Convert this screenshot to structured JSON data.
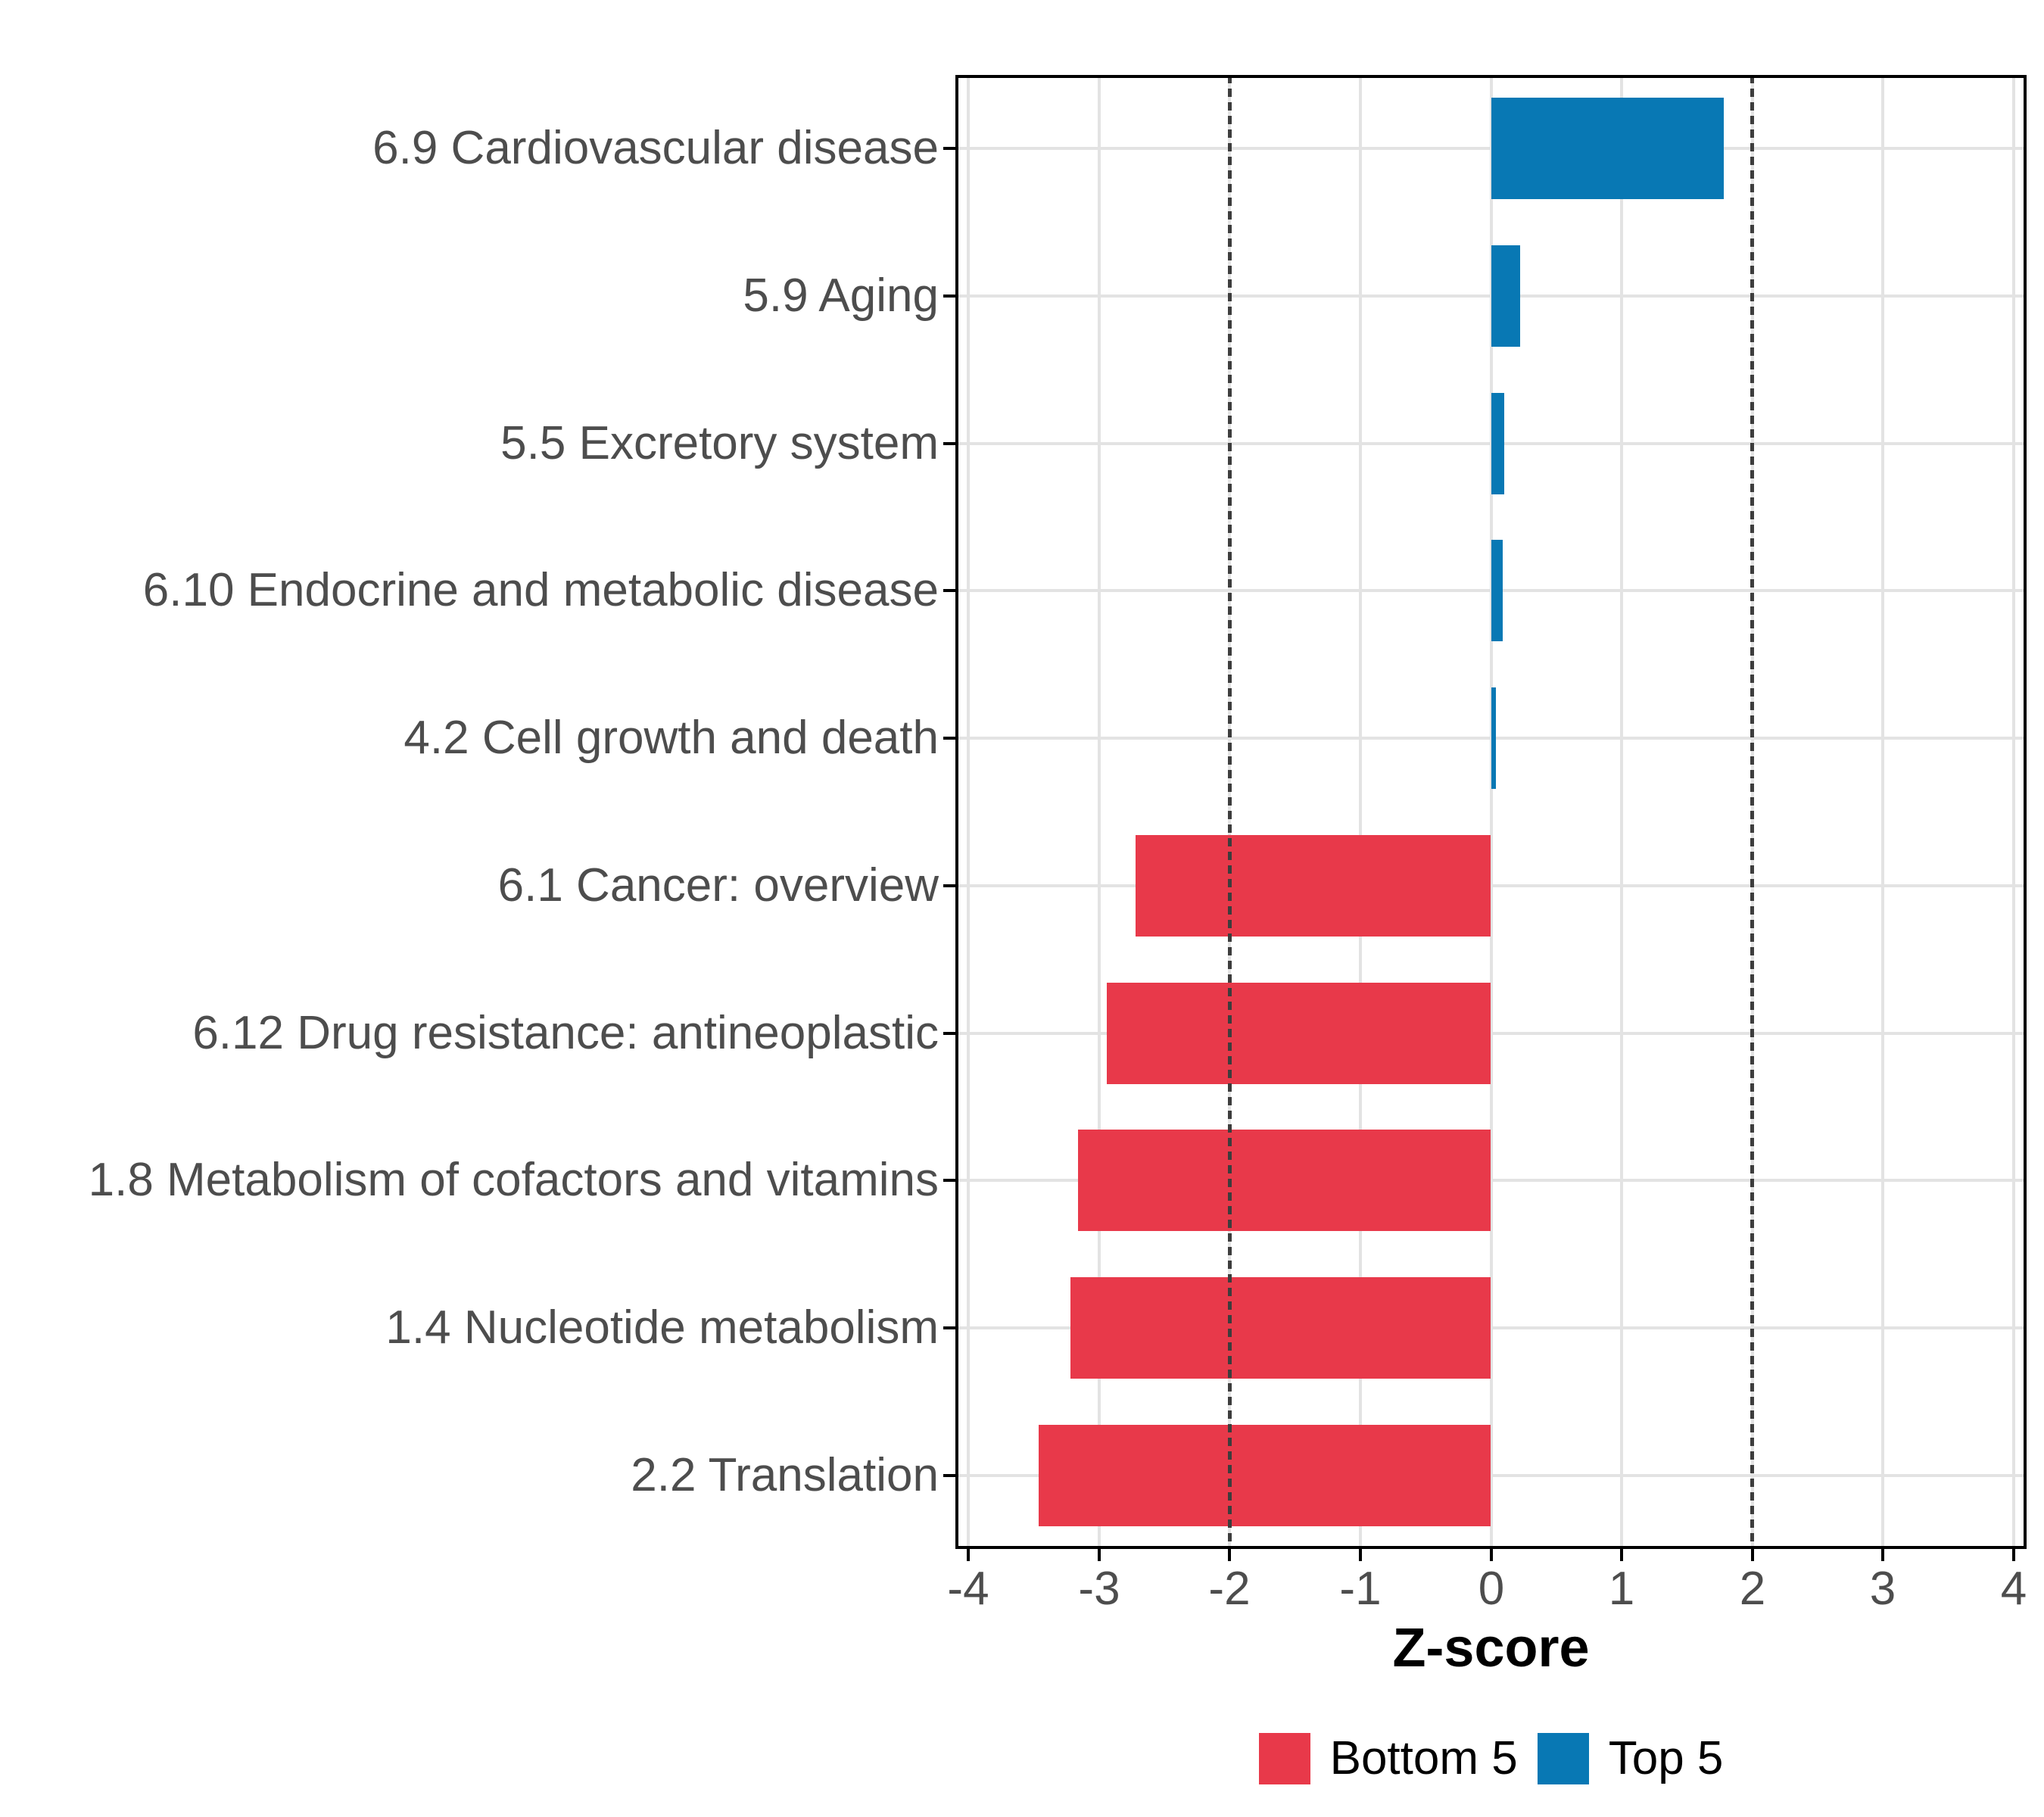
{
  "chart_data": {
    "type": "bar",
    "orientation": "horizontal",
    "xlabel": "Z-score",
    "xlim": [
      -4.1,
      4.1
    ],
    "x_ticks": [
      -4,
      -3,
      -2,
      -1,
      0,
      1,
      2,
      3,
      4
    ],
    "x_tick_labels": [
      "-4",
      "-3",
      "-2",
      "-1",
      "0",
      "1",
      "2",
      "3",
      "4"
    ],
    "reference_lines": [
      -2,
      2
    ],
    "grid": true,
    "legend_position": "bottom",
    "categories": [
      "6.9 Cardiovascular disease",
      "5.9 Aging",
      "5.5 Excretory system",
      "6.10 Endocrine and metabolic disease",
      "4.2 Cell growth and death",
      "6.1 Cancer: overview",
      "6.12 Drug resistance: antineoplastic",
      "1.8 Metabolism of cofactors and vitamins",
      "1.4 Nucleotide metabolism",
      "2.2 Translation"
    ],
    "rows": [
      {
        "label": "6.9 Cardiovascular disease",
        "value": 1.78,
        "group": "Top 5"
      },
      {
        "label": "5.9 Aging",
        "value": 0.22,
        "group": "Top 5"
      },
      {
        "label": "5.5 Excretory system",
        "value": 0.1,
        "group": "Top 5"
      },
      {
        "label": "6.10 Endocrine and metabolic disease",
        "value": 0.09,
        "group": "Top 5"
      },
      {
        "label": "4.2 Cell growth and death",
        "value": 0.04,
        "group": "Top 5"
      },
      {
        "label": "6.1 Cancer: overview",
        "value": -2.72,
        "group": "Bottom 5"
      },
      {
        "label": "6.12 Drug resistance: antineoplastic",
        "value": -2.94,
        "group": "Bottom 5"
      },
      {
        "label": "1.8 Metabolism of cofactors and vitamins",
        "value": -3.16,
        "group": "Bottom 5"
      },
      {
        "label": "1.4 Nucleotide metabolism",
        "value": -3.22,
        "group": "Bottom 5"
      },
      {
        "label": "2.2 Translation",
        "value": -3.46,
        "group": "Bottom 5"
      }
    ],
    "colors": {
      "Bottom 5": "#E8394A",
      "Top 5": "#0878B4"
    },
    "legend": [
      {
        "label": "Bottom 5",
        "color": "#E8394A"
      },
      {
        "label": "Top 5",
        "color": "#0878B4"
      }
    ],
    "style": {
      "gridline_color": "#E3E3E3",
      "refline_color": "#3D3D3D",
      "axis_text_color": "#4D4D4D",
      "panel_border_color": "#000000"
    }
  }
}
